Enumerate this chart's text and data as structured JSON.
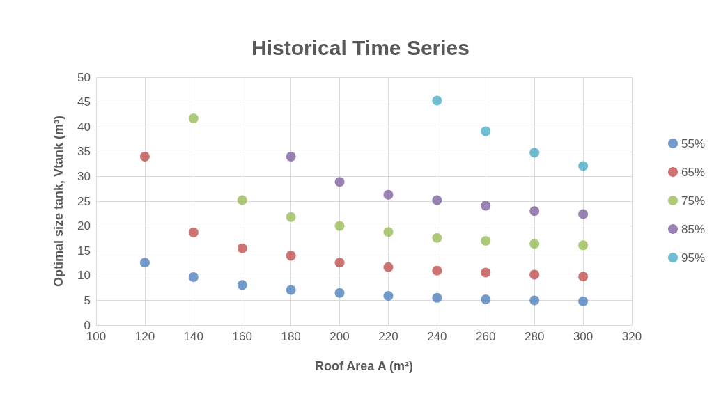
{
  "chart_data": {
    "type": "scatter",
    "title": "Historical Time Series",
    "xlabel": "Roof Area A (m²)",
    "ylabel": "Optimal size tank, Vtank (m³)",
    "xlim": [
      100,
      320
    ],
    "xticks": [
      100,
      120,
      140,
      160,
      180,
      200,
      220,
      240,
      260,
      280,
      300,
      320
    ],
    "ylim": [
      0,
      50
    ],
    "yticks": [
      0,
      5,
      10,
      15,
      20,
      25,
      30,
      35,
      40,
      45,
      50
    ],
    "grid": true,
    "legend": "right",
    "marker": "circle",
    "series": [
      {
        "name": "55%",
        "color": "#4f81bd",
        "x": [
          120,
          140,
          160,
          180,
          200,
          220,
          240,
          260,
          280,
          300
        ],
        "values": [
          12.6,
          9.7,
          8.1,
          7.1,
          6.5,
          5.9,
          5.5,
          5.2,
          5.0,
          4.8
        ]
      },
      {
        "name": "65%",
        "color": "#c0504d",
        "x": [
          120,
          140,
          160,
          180,
          200,
          220,
          240,
          260,
          280,
          300
        ],
        "values": [
          34.0,
          18.7,
          15.5,
          14.0,
          12.6,
          11.7,
          11.0,
          10.6,
          10.2,
          9.8
        ]
      },
      {
        "name": "75%",
        "color": "#9bbb59",
        "x": [
          140,
          160,
          180,
          200,
          220,
          240,
          260,
          280,
          300
        ],
        "values": [
          41.7,
          25.2,
          21.8,
          20.0,
          18.8,
          17.6,
          17.0,
          16.4,
          16.1
        ]
      },
      {
        "name": "85%",
        "color": "#8064a2",
        "x": [
          180,
          200,
          220,
          240,
          260,
          280,
          300
        ],
        "values": [
          34.0,
          28.9,
          26.3,
          25.2,
          24.1,
          23.0,
          22.4
        ]
      },
      {
        "name": "95%",
        "color": "#4bacc6",
        "x": [
          240,
          260,
          280,
          300
        ],
        "values": [
          45.3,
          39.1,
          34.8,
          32.1
        ]
      }
    ]
  }
}
